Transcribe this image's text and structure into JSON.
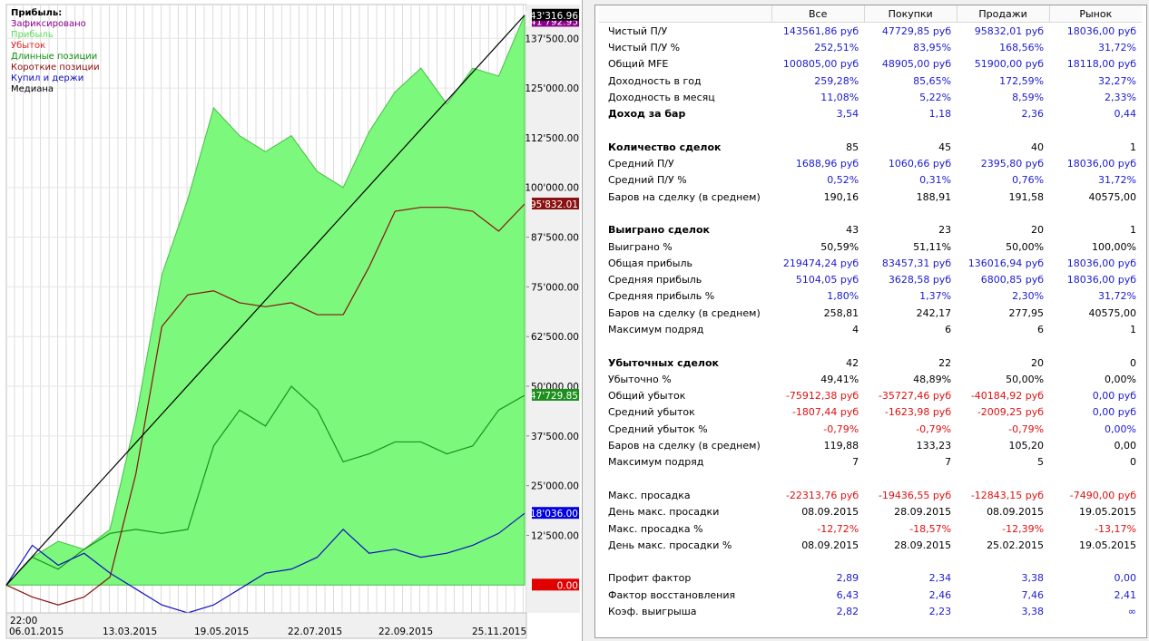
{
  "chart": {
    "legend": {
      "title": "Прибыль:",
      "items": [
        {
          "label": "Зафиксировано",
          "color": "#8b008b"
        },
        {
          "label": "Прибыль",
          "color": "#5ce05c"
        },
        {
          "label": "Убыток",
          "color": "#e02020"
        },
        {
          "label": "Длинные позиции",
          "color": "#109010"
        },
        {
          "label": "Короткие позиции",
          "color": "#8b1010"
        },
        {
          "label": "Купил и держи",
          "color": "#1010c0"
        },
        {
          "label": "Медиана",
          "color": "#000000"
        }
      ]
    },
    "y_ticks": [
      "137'500.00",
      "125'000.00",
      "112'500.00",
      "100'000.00",
      "87'500.00",
      "75'000.00",
      "62'500.00",
      "50'000.00",
      "37'500.00",
      "25'000.00",
      "12'500.00"
    ],
    "markers": {
      "profit": "143'316.96",
      "fixed": "141'792.95",
      "short": "95'832.01",
      "long": "47'729.85",
      "bh": "18'036.00",
      "zero": "0.00"
    },
    "x_time": "22:00",
    "x_labels": [
      "06.01.2015",
      "13.03.2015",
      "19.05.2015",
      "22.07.2015",
      "22.09.2015",
      "25.11.2015"
    ]
  },
  "chart_data": {
    "type": "line",
    "ylim": [
      -7000,
      146000
    ],
    "x": [
      0,
      5,
      10,
      15,
      20,
      25,
      30,
      35,
      40,
      45,
      50,
      55,
      60,
      65,
      70,
      75,
      80,
      85,
      90,
      95,
      100
    ],
    "series": [
      {
        "name": "Прибыль",
        "values": [
          0,
          7000,
          11000,
          9000,
          14000,
          42000,
          78000,
          97000,
          120000,
          113000,
          109000,
          113000,
          104000,
          100000,
          114000,
          124000,
          130000,
          121000,
          130000,
          128000,
          143316.96
        ]
      },
      {
        "name": "Длинные позиции",
        "values": [
          0,
          7000,
          4000,
          9000,
          13000,
          14000,
          13000,
          14000,
          35000,
          44000,
          40000,
          50000,
          44000,
          31000,
          33000,
          36000,
          36000,
          33000,
          35000,
          44000,
          47729.85
        ]
      },
      {
        "name": "Короткие позиции",
        "values": [
          0,
          -3000,
          -5000,
          -3000,
          2000,
          28000,
          65000,
          73000,
          74000,
          71000,
          70000,
          71000,
          68000,
          68000,
          80000,
          94000,
          95000,
          95000,
          94000,
          89000,
          95832.01
        ]
      },
      {
        "name": "Купил и держи",
        "values": [
          0,
          10000,
          5000,
          8000,
          3000,
          -1000,
          -5000,
          -7000,
          -5000,
          -1000,
          3000,
          4000,
          7000,
          14000,
          8000,
          9000,
          7000,
          8000,
          10000,
          13000,
          18036
        ]
      },
      {
        "name": "Медиана",
        "values": [
          0,
          7166,
          14332,
          21498,
          28664,
          35830,
          42996,
          50162,
          57328,
          64494,
          71660,
          78826,
          85992,
          93158,
          100324,
          107490,
          114656,
          121822,
          128988,
          136154,
          143316.96
        ]
      }
    ]
  },
  "table": {
    "headers": [
      "Все",
      "Покупки",
      "Продажи",
      "Рынок"
    ],
    "rows": [
      {
        "label": "Чистый П/У",
        "values": [
          "143561,86 руб",
          "47729,85 руб",
          "95832,01 руб",
          "18036,00 руб"
        ],
        "color": "blue"
      },
      {
        "label": "Чистый П/У %",
        "values": [
          "252,51%",
          "83,95%",
          "168,56%",
          "31,72%"
        ],
        "color": "blue"
      },
      {
        "label": "Общий MFE",
        "values": [
          "100805,00 руб",
          "48905,00 руб",
          "51900,00 руб",
          "18118,00 руб"
        ],
        "color": "blue"
      },
      {
        "label": "Доходность в год",
        "values": [
          "259,28%",
          "85,65%",
          "172,59%",
          "32,27%"
        ],
        "color": "blue"
      },
      {
        "label": "Доходность в месяц",
        "values": [
          "11,08%",
          "5,22%",
          "8,59%",
          "2,33%"
        ],
        "color": "blue"
      },
      {
        "label": "Доход за бар",
        "values": [
          "3,54",
          "1,18",
          "2,36",
          "0,44"
        ],
        "color": "blue",
        "bold": true
      },
      {
        "spacer": true
      },
      {
        "label": "Количество сделок",
        "values": [
          "85",
          "45",
          "40",
          "1"
        ],
        "color": "blk",
        "bold": true
      },
      {
        "label": "Средний П/У",
        "values": [
          "1688,96 руб",
          "1060,66 руб",
          "2395,80 руб",
          "18036,00 руб"
        ],
        "color": "blue"
      },
      {
        "label": "Средний П/У %",
        "values": [
          "0,52%",
          "0,31%",
          "0,76%",
          "31,72%"
        ],
        "color": "blue"
      },
      {
        "label": "Баров на сделку (в среднем)",
        "values": [
          "190,16",
          "188,91",
          "191,58",
          "40575,00"
        ],
        "color": "blk"
      },
      {
        "spacer": true
      },
      {
        "label": "Выиграно сделок",
        "values": [
          "43",
          "23",
          "20",
          "1"
        ],
        "color": "blk",
        "bold": true
      },
      {
        "label": "Выиграно %",
        "values": [
          "50,59%",
          "51,11%",
          "50,00%",
          "100,00%"
        ],
        "color": "blk"
      },
      {
        "label": "Общая прибыль",
        "values": [
          "219474,24 руб",
          "83457,31 руб",
          "136016,94 руб",
          "18036,00 руб"
        ],
        "color": "blue"
      },
      {
        "label": "Средняя прибыль",
        "values": [
          "5104,05 руб",
          "3628,58 руб",
          "6800,85 руб",
          "18036,00 руб"
        ],
        "color": "blue"
      },
      {
        "label": "Средняя прибыль %",
        "values": [
          "1,80%",
          "1,37%",
          "2,30%",
          "31,72%"
        ],
        "color": "blue"
      },
      {
        "label": "Баров на сделку (в среднем)",
        "values": [
          "258,81",
          "242,17",
          "277,95",
          "40575,00"
        ],
        "color": "blk"
      },
      {
        "label": "Максимум подряд",
        "values": [
          "4",
          "6",
          "6",
          "1"
        ],
        "color": "blk"
      },
      {
        "spacer": true
      },
      {
        "label": "Убыточных сделок",
        "values": [
          "42",
          "22",
          "20",
          "0"
        ],
        "color": "blk",
        "bold": true
      },
      {
        "label": "Убыточно %",
        "values": [
          "49,41%",
          "48,89%",
          "50,00%",
          "0,00%"
        ],
        "color": "blk"
      },
      {
        "label": "Общий убыток",
        "values": [
          "-75912,38 руб",
          "-35727,46 руб",
          "-40184,92 руб",
          "0,00 руб"
        ],
        "colors": [
          "red",
          "red",
          "red",
          "blue"
        ]
      },
      {
        "label": "Средний убыток",
        "values": [
          "-1807,44 руб",
          "-1623,98 руб",
          "-2009,25 руб",
          "0,00 руб"
        ],
        "colors": [
          "red",
          "red",
          "red",
          "blue"
        ]
      },
      {
        "label": "Средний убыток %",
        "values": [
          "-0,79%",
          "-0,79%",
          "-0,79%",
          "0,00%"
        ],
        "colors": [
          "red",
          "red",
          "red",
          "blue"
        ]
      },
      {
        "label": "Баров на сделку (в среднем)",
        "values": [
          "119,88",
          "133,23",
          "105,20",
          "0,00"
        ],
        "color": "blk"
      },
      {
        "label": "Максимум подряд",
        "values": [
          "7",
          "7",
          "5",
          "0"
        ],
        "color": "blk"
      },
      {
        "spacer": true
      },
      {
        "label": "Макс. просадка",
        "values": [
          "-22313,76 руб",
          "-19436,55 руб",
          "-12843,15 руб",
          "-7490,00 руб"
        ],
        "color": "red"
      },
      {
        "label": "День макс. просадки",
        "values": [
          "08.09.2015",
          "28.09.2015",
          "08.09.2015",
          "19.05.2015"
        ],
        "color": "blk"
      },
      {
        "label": "Макс. просадка %",
        "values": [
          "-12,72%",
          "-18,57%",
          "-12,39%",
          "-13,17%"
        ],
        "color": "red"
      },
      {
        "label": "День макс. просадки %",
        "values": [
          "08.09.2015",
          "28.09.2015",
          "25.02.2015",
          "19.05.2015"
        ],
        "color": "blk"
      },
      {
        "spacer": true
      },
      {
        "label": "Профит фактор",
        "values": [
          "2,89",
          "2,34",
          "3,38",
          "0,00"
        ],
        "color": "blue"
      },
      {
        "label": "Фактор восстановления",
        "values": [
          "6,43",
          "2,46",
          "7,46",
          "2,41"
        ],
        "color": "blue"
      },
      {
        "label": "Коэф. выигрыша",
        "values": [
          "2,82",
          "2,23",
          "3,38",
          "∞"
        ],
        "color": "blue"
      }
    ]
  }
}
